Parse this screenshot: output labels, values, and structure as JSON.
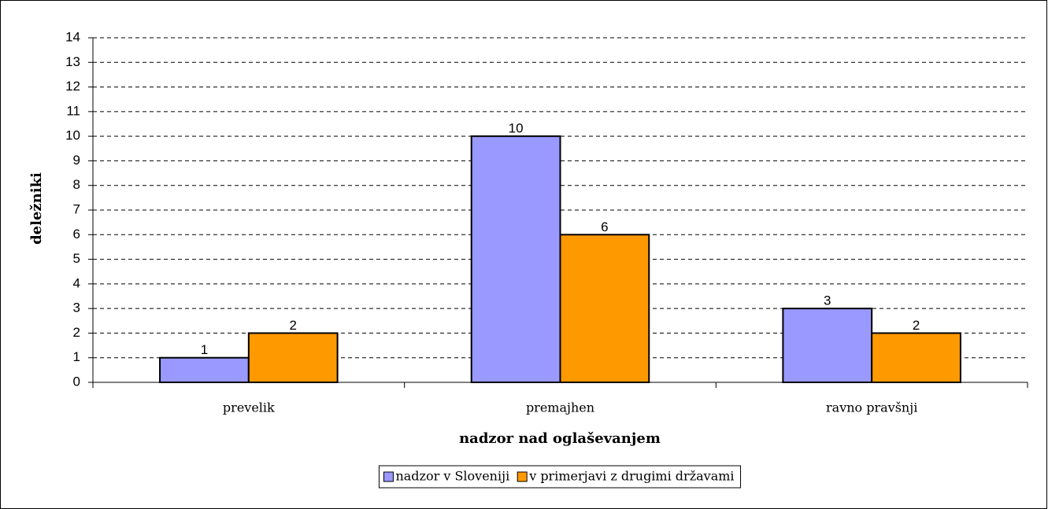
{
  "chart_data": {
    "type": "bar",
    "xlabel": "nadzor nad oglaševanjem",
    "ylabel": "deležniki",
    "categories": [
      "prevelik",
      "premajhen",
      "ravno pravšnji"
    ],
    "series": [
      {
        "name": "nadzor v Sloveniji",
        "color": "#9999ff",
        "values": [
          1,
          10,
          3
        ]
      },
      {
        "name": "v primerjavi z drugimi državami",
        "color": "#ff9900",
        "values": [
          2,
          6,
          2
        ]
      }
    ],
    "ylim": [
      0,
      14
    ],
    "yticks": [
      0,
      1,
      2,
      3,
      4,
      5,
      6,
      7,
      8,
      9,
      10,
      11,
      12,
      13,
      14
    ],
    "grid": true,
    "legend": "bottom"
  }
}
